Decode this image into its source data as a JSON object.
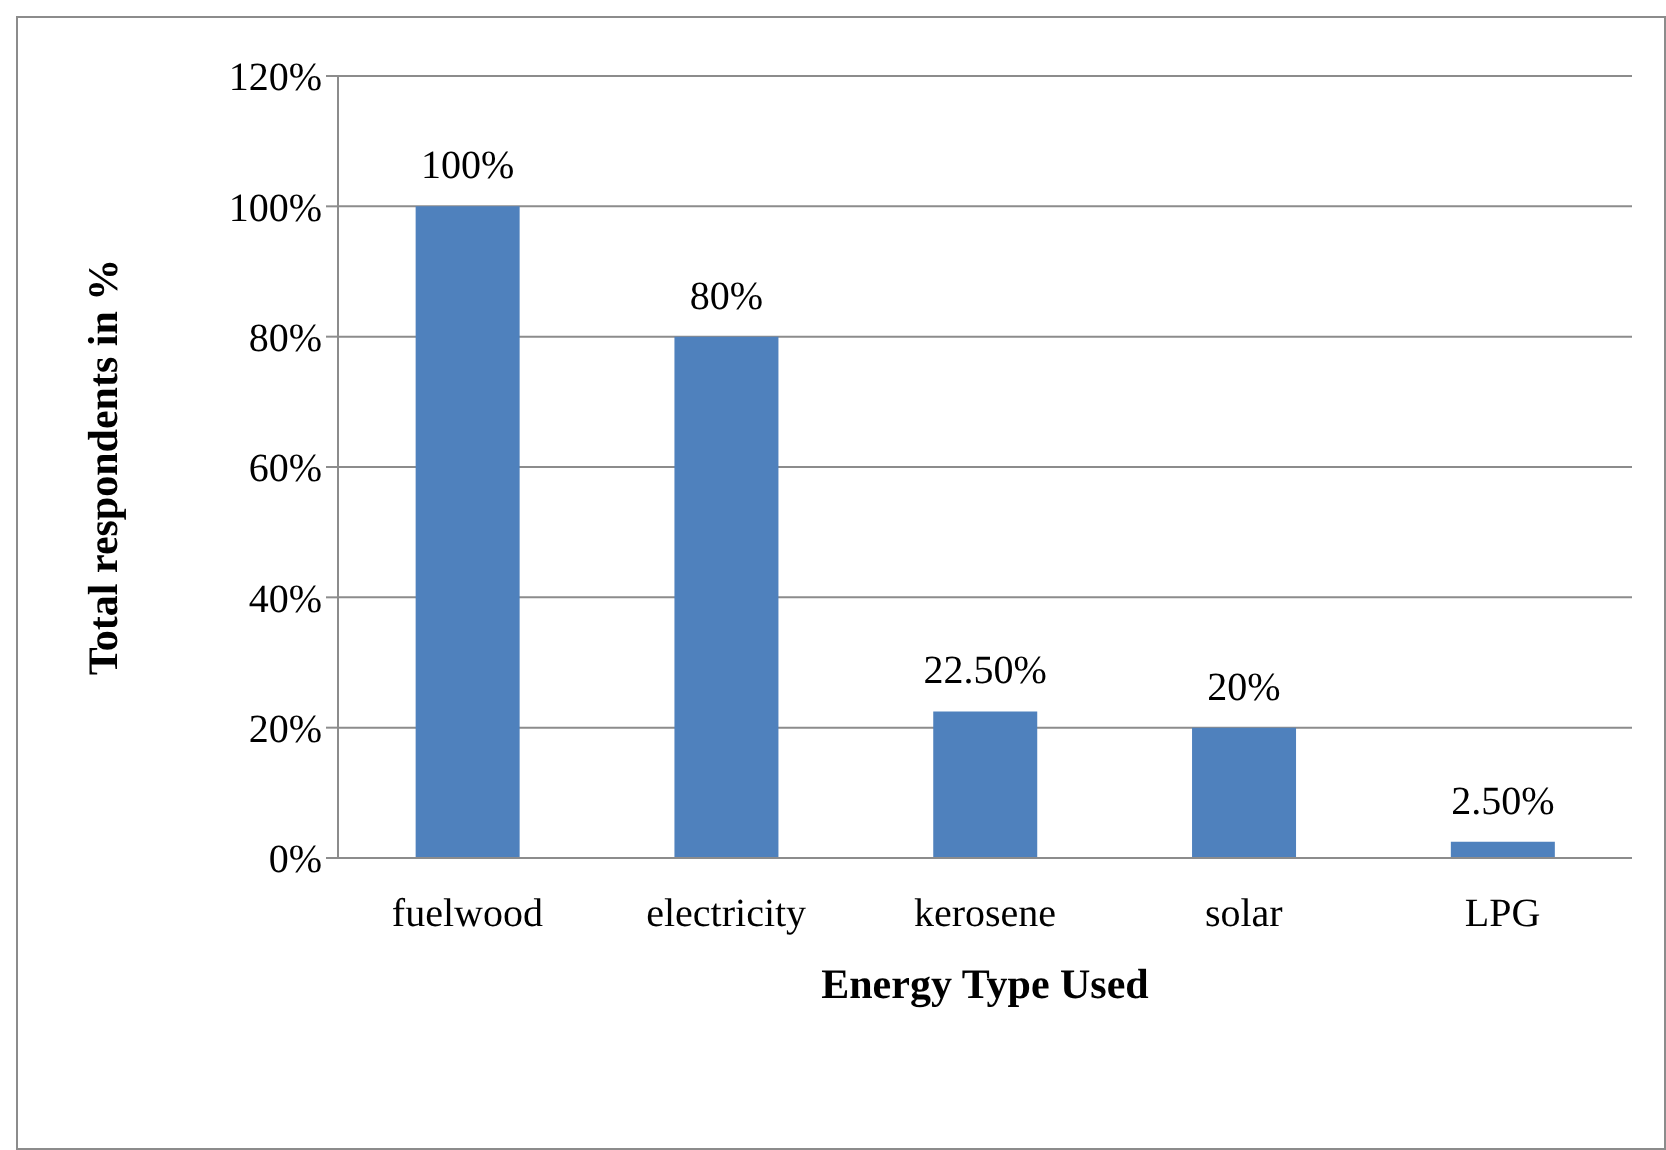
{
  "chart_data": {
    "type": "bar",
    "xlabel": "Energy Type Used",
    "ylabel": "Total respondents in %",
    "categories": [
      "fuelwood",
      "electricity",
      "kerosene",
      "solar",
      "LPG"
    ],
    "values": [
      100,
      80,
      22.5,
      20,
      2.5
    ],
    "value_labels": [
      "100%",
      "80%",
      "22.50%",
      "20%",
      "2.50%"
    ],
    "color": "#4f81bd",
    "ylim": [
      0,
      120
    ],
    "yticks": [
      {
        "value": 0,
        "label": "0%"
      },
      {
        "value": 20,
        "label": "20%"
      },
      {
        "value": 40,
        "label": "40%"
      },
      {
        "value": 60,
        "label": "60%"
      },
      {
        "value": 80,
        "label": "80%"
      },
      {
        "value": 100,
        "label": "100%"
      },
      {
        "value": 120,
        "label": "120%"
      }
    ],
    "grid": "y"
  }
}
